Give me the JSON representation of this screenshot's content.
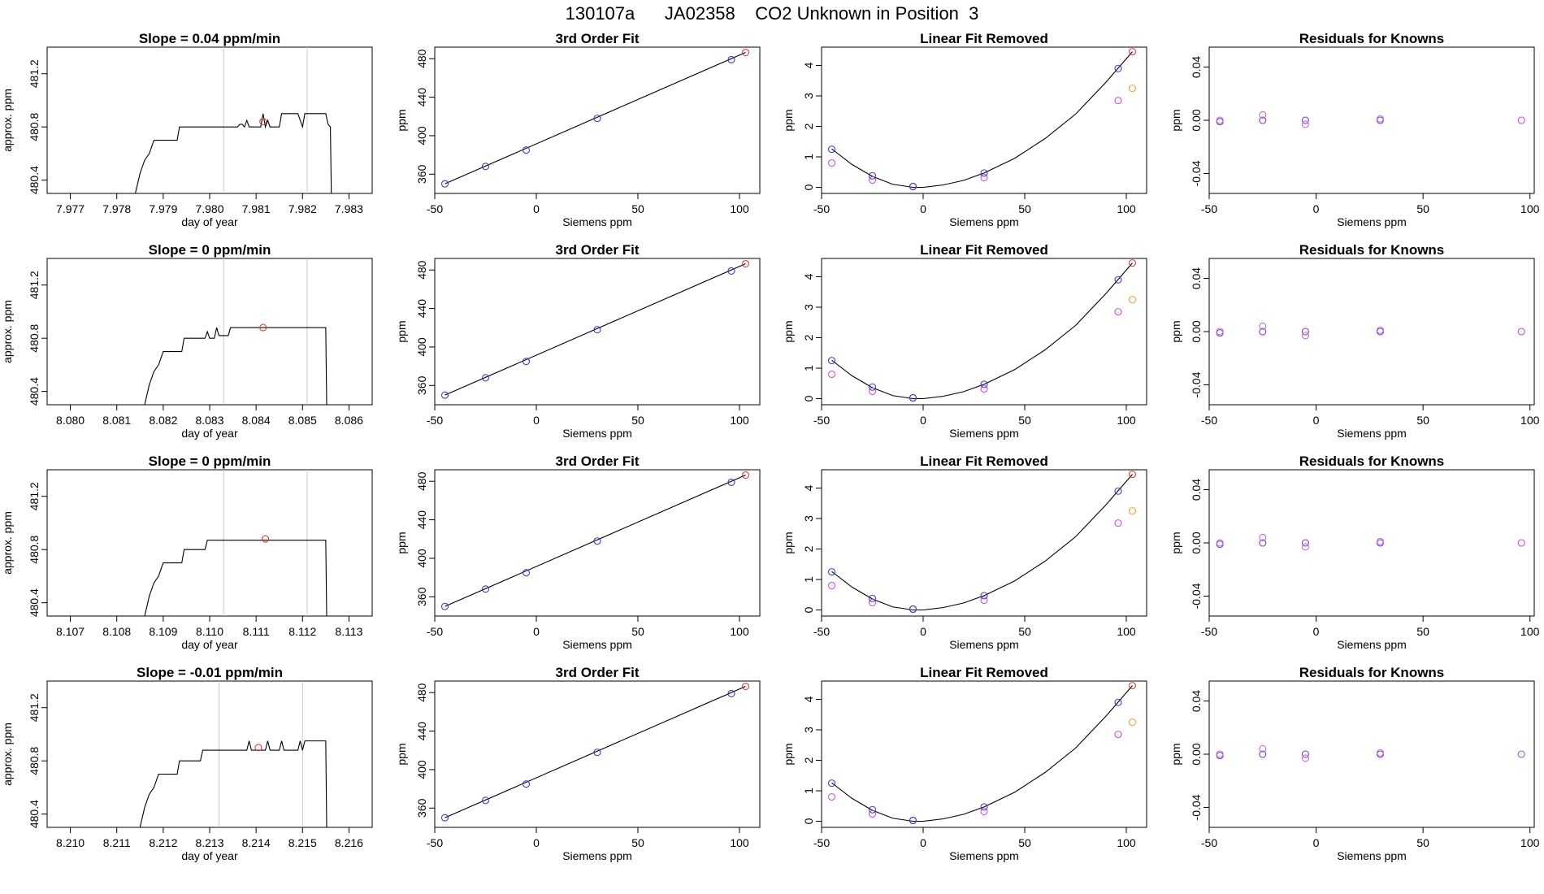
{
  "page_title": "130107a      JA02358    CO2 Unknown in Position  3",
  "colors": {
    "axis": "#000000",
    "vline": "#c8c8c8",
    "known": "#3b3bd6",
    "unknown": "#e83a3a",
    "lin_fit": "#c64be0",
    "lin_unknown": "#f0a030",
    "res_a": "#7b3bd6",
    "res_b": "#c06ae6",
    "trace": "#000000"
  },
  "chart_data": [
    {
      "type": "line",
      "row": 0,
      "title": "Slope =  0.04  ppm/min",
      "xlabel": "day of year",
      "ylabel": "approx. ppm",
      "xlim": [
        7.9765,
        7.9835
      ],
      "ylim": [
        480.3,
        481.4
      ],
      "xticks": [
        7.977,
        7.978,
        7.979,
        7.98,
        7.981,
        7.982,
        7.983
      ],
      "xtick_labels": [
        "7.977",
        "7.978",
        "7.979",
        "7.980",
        "7.981",
        "7.982",
        "7.983"
      ],
      "yticks": [
        480.4,
        480.8,
        481.2
      ],
      "ytick_labels": [
        "480.4",
        "480.8",
        "481.2"
      ],
      "vlines": [
        7.9803,
        7.9821
      ],
      "trace": [
        [
          7.9784,
          480.3
        ],
        [
          7.9785,
          480.45
        ],
        [
          7.9786,
          480.55
        ],
        [
          7.9787,
          480.6
        ],
        [
          7.97875,
          480.65
        ],
        [
          7.9788,
          480.7
        ],
        [
          7.9793,
          480.7
        ],
        [
          7.97935,
          480.8
        ],
        [
          7.9806,
          480.8
        ],
        [
          7.98065,
          480.82
        ],
        [
          7.9807,
          480.82
        ],
        [
          7.98075,
          480.8
        ],
        [
          7.9808,
          480.85
        ],
        [
          7.98085,
          480.8
        ],
        [
          7.9811,
          480.8
        ],
        [
          7.98115,
          480.9
        ],
        [
          7.9812,
          480.8
        ],
        [
          7.98125,
          480.85
        ],
        [
          7.9813,
          480.8
        ],
        [
          7.9815,
          480.8
        ],
        [
          7.98155,
          480.9
        ],
        [
          7.9819,
          480.9
        ],
        [
          7.98195,
          480.85
        ],
        [
          7.982,
          480.8
        ],
        [
          7.98205,
          480.9
        ],
        [
          7.9825,
          480.9
        ],
        [
          7.98255,
          480.82
        ],
        [
          7.9826,
          480.8
        ],
        [
          7.98262,
          480.3
        ]
      ],
      "mean_point": [
        7.98115,
        480.84
      ]
    },
    {
      "type": "line",
      "row": 1,
      "title": "Slope =  0  ppm/min",
      "xlabel": "day of year",
      "ylabel": "approx. ppm",
      "xlim": [
        8.0795,
        8.0865
      ],
      "ylim": [
        480.3,
        481.4
      ],
      "xticks": [
        8.08,
        8.081,
        8.082,
        8.083,
        8.084,
        8.085,
        8.086
      ],
      "xtick_labels": [
        "8.080",
        "8.081",
        "8.082",
        "8.083",
        "8.084",
        "8.085",
        "8.086"
      ],
      "yticks": [
        480.4,
        480.8,
        481.2
      ],
      "ytick_labels": [
        "480.4",
        "480.8",
        "481.2"
      ],
      "vlines": [
        8.0833,
        8.0851
      ],
      "trace": [
        [
          8.0816,
          480.3
        ],
        [
          8.0817,
          480.45
        ],
        [
          8.0818,
          480.55
        ],
        [
          8.0819,
          480.6
        ],
        [
          8.08195,
          480.65
        ],
        [
          8.082,
          480.7
        ],
        [
          8.0824,
          480.7
        ],
        [
          8.08245,
          480.8
        ],
        [
          8.0829,
          480.8
        ],
        [
          8.08295,
          480.85
        ],
        [
          8.083,
          480.8
        ],
        [
          8.0831,
          480.8
        ],
        [
          8.08315,
          480.88
        ],
        [
          8.0832,
          480.82
        ],
        [
          8.0834,
          480.82
        ],
        [
          8.08345,
          480.88
        ],
        [
          8.0855,
          480.88
        ],
        [
          8.08552,
          480.3
        ]
      ],
      "mean_point": [
        8.08415,
        480.88
      ]
    },
    {
      "type": "line",
      "row": 2,
      "title": "Slope =  0  ppm/min",
      "xlabel": "day of year",
      "ylabel": "approx. ppm",
      "xlim": [
        8.1065,
        8.1135
      ],
      "ylim": [
        480.3,
        481.4
      ],
      "xticks": [
        8.107,
        8.108,
        8.109,
        8.11,
        8.111,
        8.112,
        8.113
      ],
      "xtick_labels": [
        "8.107",
        "8.108",
        "8.109",
        "8.110",
        "8.111",
        "8.112",
        "8.113"
      ],
      "yticks": [
        480.4,
        480.8,
        481.2
      ],
      "ytick_labels": [
        "480.4",
        "480.8",
        "481.2"
      ],
      "vlines": [
        8.1103,
        8.1121
      ],
      "trace": [
        [
          8.1086,
          480.3
        ],
        [
          8.1087,
          480.45
        ],
        [
          8.1088,
          480.55
        ],
        [
          8.1089,
          480.6
        ],
        [
          8.10895,
          480.65
        ],
        [
          8.109,
          480.7
        ],
        [
          8.1094,
          480.7
        ],
        [
          8.10945,
          480.8
        ],
        [
          8.1099,
          480.8
        ],
        [
          8.10995,
          480.87
        ],
        [
          8.111,
          480.87
        ],
        [
          8.1125,
          480.87
        ],
        [
          8.11252,
          480.3
        ]
      ],
      "mean_point": [
        8.1112,
        480.88
      ]
    },
    {
      "type": "line",
      "row": 3,
      "title": "Slope =  -0.01  ppm/min",
      "xlabel": "day of year",
      "ylabel": "approx. ppm",
      "xlim": [
        8.2095,
        8.2165
      ],
      "ylim": [
        480.3,
        481.4
      ],
      "xticks": [
        8.21,
        8.211,
        8.212,
        8.213,
        8.214,
        8.215,
        8.216
      ],
      "xtick_labels": [
        "8.210",
        "8.211",
        "8.212",
        "8.213",
        "8.214",
        "8.215",
        "8.216"
      ],
      "yticks": [
        480.4,
        480.8,
        481.2
      ],
      "ytick_labels": [
        "480.4",
        "480.8",
        "481.2"
      ],
      "vlines": [
        8.2132,
        8.215
      ],
      "trace": [
        [
          8.2115,
          480.3
        ],
        [
          8.2116,
          480.45
        ],
        [
          8.2117,
          480.55
        ],
        [
          8.2118,
          480.6
        ],
        [
          8.21185,
          480.65
        ],
        [
          8.2119,
          480.7
        ],
        [
          8.2123,
          480.7
        ],
        [
          8.21235,
          480.8
        ],
        [
          8.2128,
          480.8
        ],
        [
          8.21285,
          480.88
        ],
        [
          8.2138,
          480.88
        ],
        [
          8.21385,
          480.95
        ],
        [
          8.2139,
          480.88
        ],
        [
          8.2142,
          480.88
        ],
        [
          8.21425,
          480.95
        ],
        [
          8.2143,
          480.88
        ],
        [
          8.2145,
          480.88
        ],
        [
          8.21455,
          480.95
        ],
        [
          8.2146,
          480.88
        ],
        [
          8.2149,
          480.88
        ],
        [
          8.21495,
          480.95
        ],
        [
          8.215,
          480.88
        ],
        [
          8.21505,
          480.95
        ],
        [
          8.2155,
          480.95
        ],
        [
          8.21552,
          480.3
        ]
      ],
      "mean_point": [
        8.21405,
        480.9
      ]
    },
    {
      "type": "scatter",
      "col": 1,
      "title": "3rd Order Fit",
      "xlabel": "Siemens ppm",
      "ylabel": "ppm",
      "xlim": [
        -50,
        110
      ],
      "ylim": [
        340,
        492
      ],
      "xticks": [
        -50,
        0,
        50,
        100
      ],
      "xtick_labels": [
        "-50",
        "0",
        "50",
        "100"
      ],
      "yticks": [
        360,
        400,
        440,
        480
      ],
      "ytick_labels": [
        "360",
        "400",
        "440",
        "480"
      ],
      "knowns": [
        [
          -45,
          350
        ],
        [
          -25,
          368
        ],
        [
          -5,
          385
        ],
        [
          30,
          418
        ],
        [
          96,
          479
        ]
      ],
      "unknown": [
        [
          103,
          486.5
        ]
      ],
      "fit_line": [
        [
          -45,
          350
        ],
        [
          103,
          486.5
        ]
      ]
    },
    {
      "type": "scatter",
      "col": 2,
      "title": "Linear Fit Removed",
      "xlabel": "Siemens ppm",
      "ylabel": "ppm",
      "xlim": [
        -50,
        110
      ],
      "ylim": [
        -0.2,
        4.6
      ],
      "xticks": [
        -50,
        0,
        50,
        100
      ],
      "xtick_labels": [
        "-50",
        "0",
        "50",
        "100"
      ],
      "yticks": [
        0,
        1,
        2,
        3,
        4
      ],
      "ytick_labels": [
        "0",
        "1",
        "2",
        "3",
        "4"
      ],
      "knowns": [
        [
          -45,
          1.25
        ],
        [
          -25,
          0.38
        ],
        [
          -5,
          0.03
        ],
        [
          30,
          0.47
        ],
        [
          96,
          3.9
        ]
      ],
      "linear_removed": [
        [
          -45,
          0.8
        ],
        [
          -25,
          0.24
        ],
        [
          -5,
          0.02
        ],
        [
          30,
          0.32
        ],
        [
          96,
          2.85
        ]
      ],
      "unknown": [
        [
          103,
          4.45
        ]
      ],
      "unknown_linear": [
        [
          103,
          3.25
        ]
      ],
      "curve": [
        [
          -45,
          1.26
        ],
        [
          -35,
          0.75
        ],
        [
          -25,
          0.36
        ],
        [
          -15,
          0.1
        ],
        [
          -5,
          0.0
        ],
        [
          0,
          0.0
        ],
        [
          10,
          0.08
        ],
        [
          20,
          0.23
        ],
        [
          30,
          0.47
        ],
        [
          45,
          0.95
        ],
        [
          60,
          1.6
        ],
        [
          75,
          2.4
        ],
        [
          90,
          3.45
        ],
        [
          103,
          4.45
        ]
      ]
    },
    {
      "type": "scatter",
      "col": 3,
      "title": "Residuals for Knowns",
      "xlabel": "Siemens ppm",
      "ylabel": "ppm",
      "xlim": [
        -50,
        102
      ],
      "ylim": [
        -0.055,
        0.055
      ],
      "xticks": [
        -50,
        0,
        50,
        100
      ],
      "xtick_labels": [
        "-50",
        "0",
        "50",
        "100"
      ],
      "yticks": [
        -0.04,
        0,
        0.04
      ],
      "ytick_labels": [
        "-0.04",
        "0.00",
        "0.04"
      ],
      "series": [
        {
          "points": [
            [
              -45,
              -0.001
            ],
            [
              -25,
              0.0
            ],
            [
              -5,
              0.0
            ],
            [
              30,
              0.0
            ],
            [
              96,
              0.0
            ]
          ]
        },
        {
          "points": [
            [
              -45,
              0.0
            ],
            [
              -25,
              0.004
            ],
            [
              -5,
              -0.003
            ],
            [
              30,
              0.001
            ],
            [
              96,
              0.0
            ]
          ]
        }
      ]
    }
  ]
}
